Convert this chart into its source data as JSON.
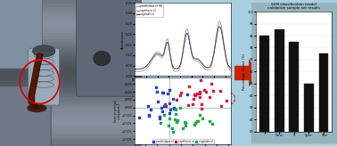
{
  "background_color": "#a8cfe0",
  "bar_values": [
    96,
    97,
    95,
    88,
    93
  ],
  "bar_color": "#111111",
  "bar_chart_title_line1": "SVM classification model",
  "bar_chart_title_line2": "validation sample set results",
  "bar_ylabel": "Percentage correct (%)",
  "bar_ylim": [
    80,
    100
  ],
  "bar_categories": [
    "",
    "Sens.",
    "S",
    "Spec.",
    "Test"
  ],
  "arrow_color": "#cc2200",
  "nir_line_color1": "#cc7777",
  "nir_line_color2": "#7777cc",
  "nir_line_color3": "#333333",
  "scatter_color1": "#2244cc",
  "scatter_color2": "#cc2244",
  "scatter_color3": "#22aa44",
  "photo_colors": {
    "bg_top": "#8898b0",
    "bg_mid": "#9aaabb",
    "engine_light": "#b8c8d8",
    "engine_dark": "#606878",
    "oil_color": "#5a1a00",
    "circle_color": "#cc0000"
  }
}
